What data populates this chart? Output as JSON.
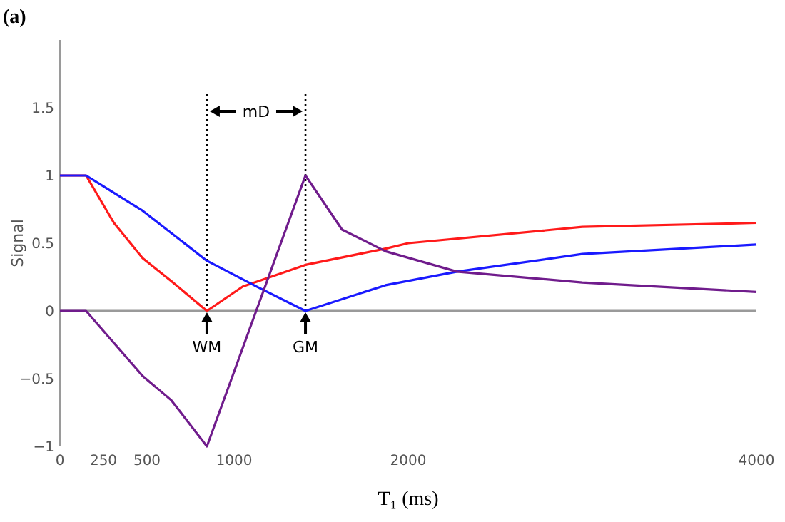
{
  "chart_data": {
    "type": "line",
    "xlabel": "T₁ (ms)",
    "ylabel": "Signal",
    "xlim": [
      0,
      4000
    ],
    "ylim": [
      -1,
      2
    ],
    "xticks": [
      0,
      250,
      500,
      1000,
      2000,
      4000
    ],
    "yticks": [
      {
        "value": -1,
        "label": "−1"
      },
      {
        "value": -0.5,
        "label": "−0.5"
      },
      0,
      0.5,
      1,
      1.5
    ],
    "line_style": "solid",
    "series": [
      {
        "color": "#ff1a1a",
        "x": [
          0,
          150,
          310,
          475,
          640,
          844,
          1050,
          1410,
          1870,
          2000,
          3000,
          4000
        ],
        "values": [
          1,
          1,
          0.65,
          0.39,
          0.22,
          0,
          0.18,
          0.34,
          0.46,
          0.5,
          0.62,
          0.65
        ]
      },
      {
        "color": "#1a1aff",
        "x": [
          0,
          150,
          300,
          475,
          844,
          1130,
          1410,
          1870,
          2280,
          3000,
          4000
        ],
        "values": [
          1,
          1,
          0.88,
          0.74,
          0.37,
          0.18,
          0,
          0.19,
          0.29,
          0.42,
          0.49
        ]
      },
      {
        "color": "#701c8c",
        "x": [
          0,
          150,
          475,
          640,
          844,
          1410,
          1620,
          1870,
          2280,
          3000,
          4000
        ],
        "values": [
          0,
          0,
          -0.48,
          -0.66,
          -1,
          1,
          0.6,
          0.44,
          0.29,
          0.21,
          0.14
        ]
      }
    ],
    "ref_lines": [
      {
        "axis": "x",
        "value": 844,
        "label": "WM",
        "line_style": "dotted",
        "color": "#000000"
      },
      {
        "axis": "x",
        "value": 1410,
        "label": "GM",
        "line_style": "dotted",
        "color": "#000000"
      }
    ],
    "annotations": [
      "(a)",
      "mD"
    ]
  }
}
